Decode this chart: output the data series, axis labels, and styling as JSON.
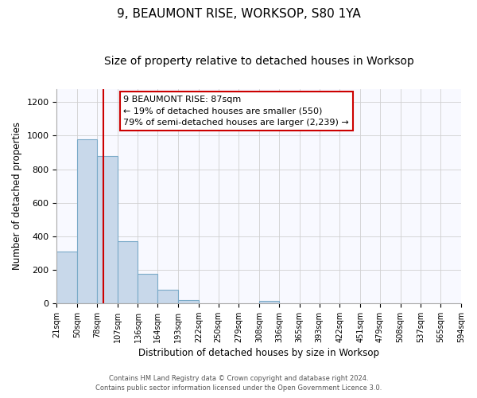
{
  "title": "9, BEAUMONT RISE, WORKSOP, S80 1YA",
  "subtitle": "Size of property relative to detached houses in Worksop",
  "xlabel": "Distribution of detached houses by size in Worksop",
  "ylabel": "Number of detached properties",
  "bin_edges": [
    21,
    50,
    78,
    107,
    136,
    164,
    193,
    222,
    250,
    279,
    308,
    336,
    365,
    393,
    422,
    451,
    479,
    508,
    537,
    565,
    594
  ],
  "bar_heights": [
    310,
    980,
    880,
    370,
    175,
    80,
    20,
    0,
    0,
    0,
    15,
    0,
    0,
    0,
    0,
    0,
    0,
    0,
    0,
    0
  ],
  "bar_color": "#c8d8ea",
  "bar_edge_color": "#7aaac8",
  "property_size": 87,
  "vline_color": "#cc0000",
  "annotation_line1": "9 BEAUMONT RISE: 87sqm",
  "annotation_line2": "← 19% of detached houses are smaller (550)",
  "annotation_line3": "79% of semi-detached houses are larger (2,239) →",
  "annotation_box_color": "#ffffff",
  "annotation_box_edge": "#cc0000",
  "ylim": [
    0,
    1280
  ],
  "yticks": [
    0,
    200,
    400,
    600,
    800,
    1000,
    1200
  ],
  "footer_line1": "Contains HM Land Registry data © Crown copyright and database right 2024.",
  "footer_line2": "Contains public sector information licensed under the Open Government Licence 3.0.",
  "grid_color": "#d0d0d0",
  "title_fontsize": 11,
  "subtitle_fontsize": 10,
  "title_fontweight": "normal"
}
